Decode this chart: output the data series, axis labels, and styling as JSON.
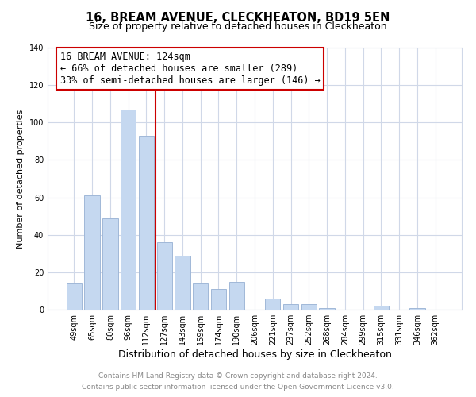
{
  "title": "16, BREAM AVENUE, CLECKHEATON, BD19 5EN",
  "subtitle": "Size of property relative to detached houses in Cleckheaton",
  "xlabel": "Distribution of detached houses by size in Cleckheaton",
  "ylabel": "Number of detached properties",
  "bar_labels": [
    "49sqm",
    "65sqm",
    "80sqm",
    "96sqm",
    "112sqm",
    "127sqm",
    "143sqm",
    "159sqm",
    "174sqm",
    "190sqm",
    "206sqm",
    "221sqm",
    "237sqm",
    "252sqm",
    "268sqm",
    "284sqm",
    "299sqm",
    "315sqm",
    "331sqm",
    "346sqm",
    "362sqm"
  ],
  "bar_values": [
    14,
    61,
    49,
    107,
    93,
    36,
    29,
    14,
    11,
    15,
    0,
    6,
    3,
    3,
    1,
    0,
    0,
    2,
    0,
    1,
    0
  ],
  "bar_color": "#c5d8f0",
  "bar_edgecolor": "#a0b8d8",
  "vline_color": "#cc0000",
  "annotation_title": "16 BREAM AVENUE: 124sqm",
  "annotation_line1": "← 66% of detached houses are smaller (289)",
  "annotation_line2": "33% of semi-detached houses are larger (146) →",
  "annotation_box_edgecolor": "#cc0000",
  "ylim": [
    0,
    140
  ],
  "yticks": [
    0,
    20,
    40,
    60,
    80,
    100,
    120,
    140
  ],
  "footer1": "Contains HM Land Registry data © Crown copyright and database right 2024.",
  "footer2": "Contains public sector information licensed under the Open Government Licence v3.0.",
  "background_color": "#ffffff",
  "grid_color": "#d0d8e8",
  "title_fontsize": 10.5,
  "subtitle_fontsize": 9,
  "ylabel_fontsize": 8,
  "xlabel_fontsize": 9,
  "tick_fontsize": 7,
  "footer_fontsize": 6.5,
  "annot_fontsize": 8.5
}
